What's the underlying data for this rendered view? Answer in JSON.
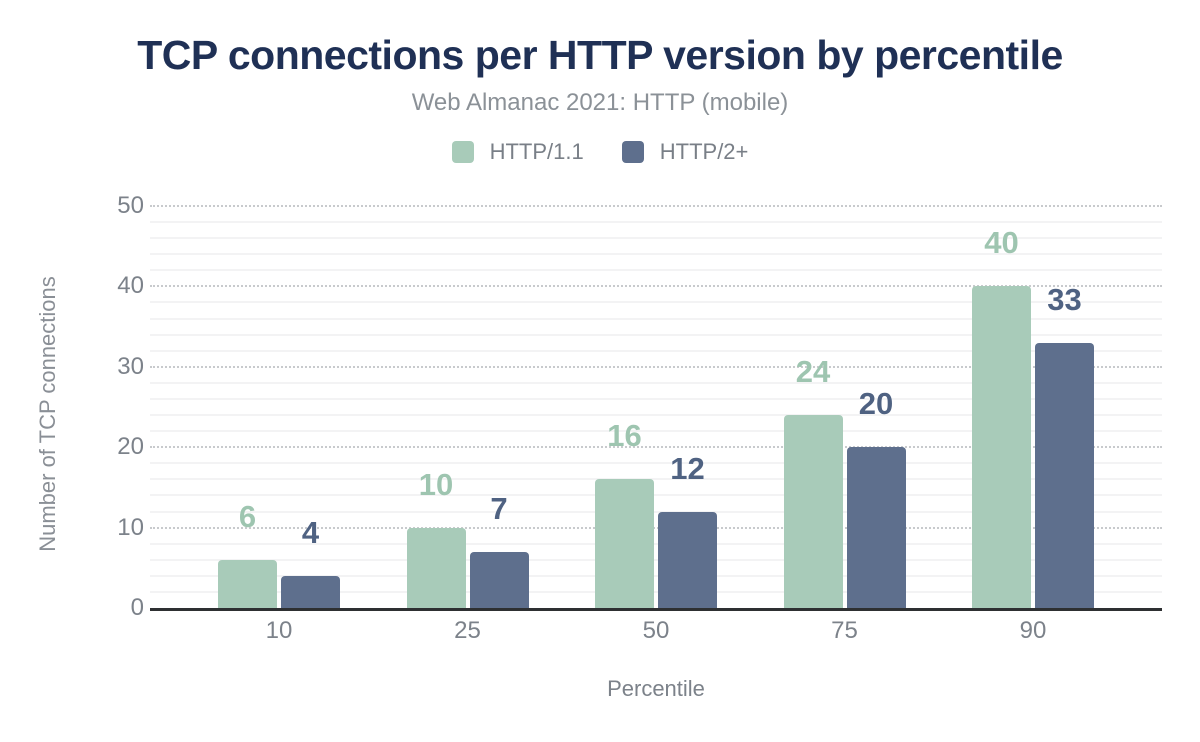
{
  "chart_data": {
    "type": "bar",
    "title": "TCP connections per HTTP version by percentile",
    "subtitle": "Web Almanac 2021: HTTP (mobile)",
    "xlabel": "Percentile",
    "ylabel": "Number of TCP connections",
    "categories": [
      "10",
      "25",
      "50",
      "75",
      "90"
    ],
    "series": [
      {
        "name": "HTTP/1.1",
        "values": [
          6,
          10,
          16,
          24,
          40
        ],
        "color": "#a8cbb9",
        "label_color": "#9ec5b0"
      },
      {
        "name": "HTTP/2+",
        "values": [
          4,
          7,
          12,
          20,
          33
        ],
        "color": "#5e6f8d",
        "label_color": "#4f6282"
      }
    ],
    "ylim": [
      0,
      50
    ],
    "yticks": [
      0,
      10,
      20,
      30,
      40,
      50
    ],
    "grid": {
      "major_step": 10,
      "minor_step": 2,
      "major_style": "dotted",
      "minor_style": "solid"
    },
    "legend_position": "top",
    "colors": {
      "title": "#1f3055",
      "subtitle": "#8b9197",
      "legend_text": "#797f87",
      "axis_label": "#7c828a",
      "axis_line": "#2e3032",
      "major_grid": "#c8cacd",
      "minor_grid": "#f3f3f4",
      "background": "#ffffff"
    }
  }
}
